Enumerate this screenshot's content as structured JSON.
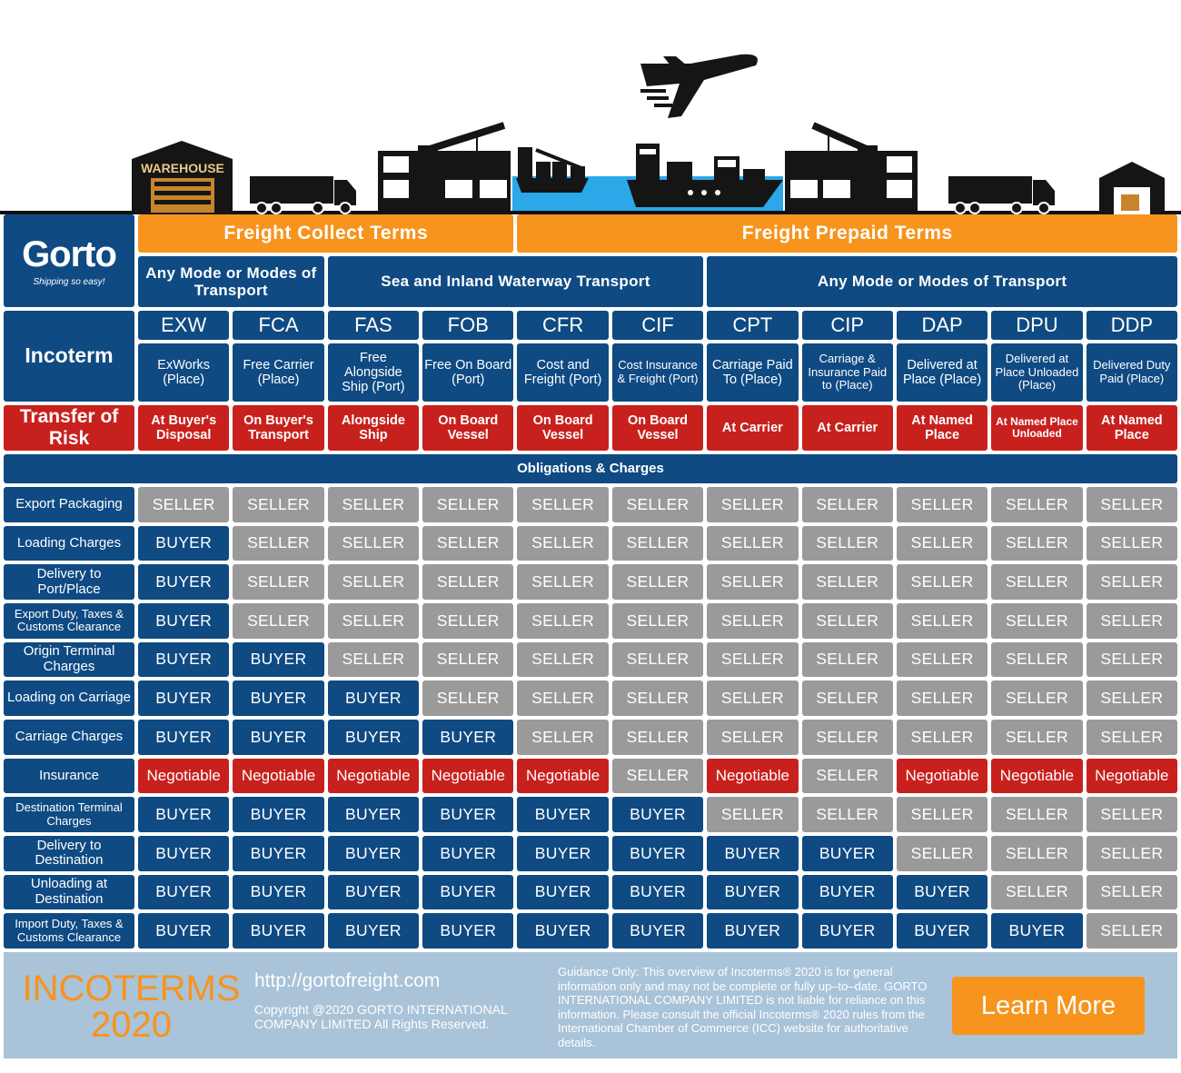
{
  "illustration": {
    "warehouse_sign": "WAREHOUSE",
    "icons": [
      "warehouse-icon",
      "truck-icon",
      "port-crane-icon",
      "cargo-ship-icon",
      "airplane-icon",
      "container-ship-icon",
      "port-crane-icon",
      "truck-icon",
      "house-icon"
    ],
    "water_color": "#2aa8e8"
  },
  "logo": {
    "name": "Gorto",
    "tagline": "Shipping so easy!"
  },
  "headers": {
    "collect": "Freight Collect Terms",
    "prepaid": "Freight Prepaid Terms",
    "modes": [
      "Any Mode or Modes of Transport",
      "Sea and Inland Waterway Transport",
      "Any Mode or Modes of Transport"
    ],
    "incoterm_label": "Incoterm",
    "risk_label": "Transfer of Risk",
    "obligations": "Obligations & Charges"
  },
  "terms": [
    {
      "code": "EXW",
      "desc": "ExWorks (Place)",
      "risk": "At Buyer's Disposal"
    },
    {
      "code": "FCA",
      "desc": "Free Carrier (Place)",
      "risk": "On Buyer's Transport"
    },
    {
      "code": "FAS",
      "desc": "Free Alongside Ship (Port)",
      "risk": "Alongside Ship"
    },
    {
      "code": "FOB",
      "desc": "Free On Board (Port)",
      "risk": "On Board Vessel"
    },
    {
      "code": "CFR",
      "desc": "Cost and Freight (Port)",
      "risk": "On Board Vessel"
    },
    {
      "code": "CIF",
      "desc": "Cost Insurance & Freight (Port)",
      "risk": "On Board Vessel"
    },
    {
      "code": "CPT",
      "desc": "Carriage Paid To (Place)",
      "risk": "At Carrier"
    },
    {
      "code": "CIP",
      "desc": "Carriage & Insurance Paid to (Place)",
      "risk": "At Carrier"
    },
    {
      "code": "DAP",
      "desc": "Delivered at Place (Place)",
      "risk": "At Named Place"
    },
    {
      "code": "DPU",
      "desc": "Delivered at Place Unloaded (Place)",
      "risk": "At Named Place Unloaded"
    },
    {
      "code": "DDP",
      "desc": "Delivered Duty Paid (Place)",
      "risk": "At Named Place"
    }
  ],
  "rows": [
    {
      "label": "Export Packaging",
      "values": [
        "SELLER",
        "SELLER",
        "SELLER",
        "SELLER",
        "SELLER",
        "SELLER",
        "SELLER",
        "SELLER",
        "SELLER",
        "SELLER",
        "SELLER"
      ]
    },
    {
      "label": "Loading Charges",
      "values": [
        "BUYER",
        "SELLER",
        "SELLER",
        "SELLER",
        "SELLER",
        "SELLER",
        "SELLER",
        "SELLER",
        "SELLER",
        "SELLER",
        "SELLER"
      ]
    },
    {
      "label": "Delivery to Port/Place",
      "values": [
        "BUYER",
        "SELLER",
        "SELLER",
        "SELLER",
        "SELLER",
        "SELLER",
        "SELLER",
        "SELLER",
        "SELLER",
        "SELLER",
        "SELLER"
      ]
    },
    {
      "label": "Export Duty, Taxes & Customs Clearance",
      "values": [
        "BUYER",
        "SELLER",
        "SELLER",
        "SELLER",
        "SELLER",
        "SELLER",
        "SELLER",
        "SELLER",
        "SELLER",
        "SELLER",
        "SELLER"
      ]
    },
    {
      "label": "Origin Terminal Charges",
      "values": [
        "BUYER",
        "BUYER",
        "SELLER",
        "SELLER",
        "SELLER",
        "SELLER",
        "SELLER",
        "SELLER",
        "SELLER",
        "SELLER",
        "SELLER"
      ]
    },
    {
      "label": "Loading on Carriage",
      "values": [
        "BUYER",
        "BUYER",
        "BUYER",
        "SELLER",
        "SELLER",
        "SELLER",
        "SELLER",
        "SELLER",
        "SELLER",
        "SELLER",
        "SELLER"
      ]
    },
    {
      "label": "Carriage Charges",
      "values": [
        "BUYER",
        "BUYER",
        "BUYER",
        "BUYER",
        "SELLER",
        "SELLER",
        "SELLER",
        "SELLER",
        "SELLER",
        "SELLER",
        "SELLER"
      ]
    },
    {
      "label": "Insurance",
      "values": [
        "Negotiable",
        "Negotiable",
        "Negotiable",
        "Negotiable",
        "Negotiable",
        "SELLER",
        "Negotiable",
        "SELLER",
        "Negotiable",
        "Negotiable",
        "Negotiable"
      ]
    },
    {
      "label": "Destination Terminal Charges",
      "values": [
        "BUYER",
        "BUYER",
        "BUYER",
        "BUYER",
        "BUYER",
        "BUYER",
        "SELLER",
        "SELLER",
        "SELLER",
        "SELLER",
        "SELLER"
      ]
    },
    {
      "label": "Delivery to Destination",
      "values": [
        "BUYER",
        "BUYER",
        "BUYER",
        "BUYER",
        "BUYER",
        "BUYER",
        "BUYER",
        "BUYER",
        "SELLER",
        "SELLER",
        "SELLER"
      ]
    },
    {
      "label": "Unloading at Destination",
      "values": [
        "BUYER",
        "BUYER",
        "BUYER",
        "BUYER",
        "BUYER",
        "BUYER",
        "BUYER",
        "BUYER",
        "BUYER",
        "SELLER",
        "SELLER"
      ]
    },
    {
      "label": "Import Duty, Taxes & Customs Clearance",
      "values": [
        "BUYER",
        "BUYER",
        "BUYER",
        "BUYER",
        "BUYER",
        "BUYER",
        "BUYER",
        "BUYER",
        "BUYER",
        "BUYER",
        "SELLER"
      ]
    }
  ],
  "colors": {
    "buyer": "#0f4a83",
    "seller": "#9a9a9a",
    "negotiable": "#c8211d",
    "header": "#f7941d"
  },
  "footer": {
    "title_line1": "INCOTERMS",
    "title_line2": "2020",
    "url": "http://gortofreight.com",
    "copyright": "Copyright @2020 GORTO INTERNATIONAL COMPANY LIMITED All Rights Reserved.",
    "disclaimer": "Guidance Only: This overview of Incoterms® 2020 is for general information only and may not be complete or fully up–to–date. GORTO INTERNATIONAL COMPANY LIMITED is not liable for reliance on this information. Please consult the official Incoterms® 2020 rules from the International Chamber of Commerce (ICC) website for authoritative details.",
    "button": "Learn More"
  }
}
